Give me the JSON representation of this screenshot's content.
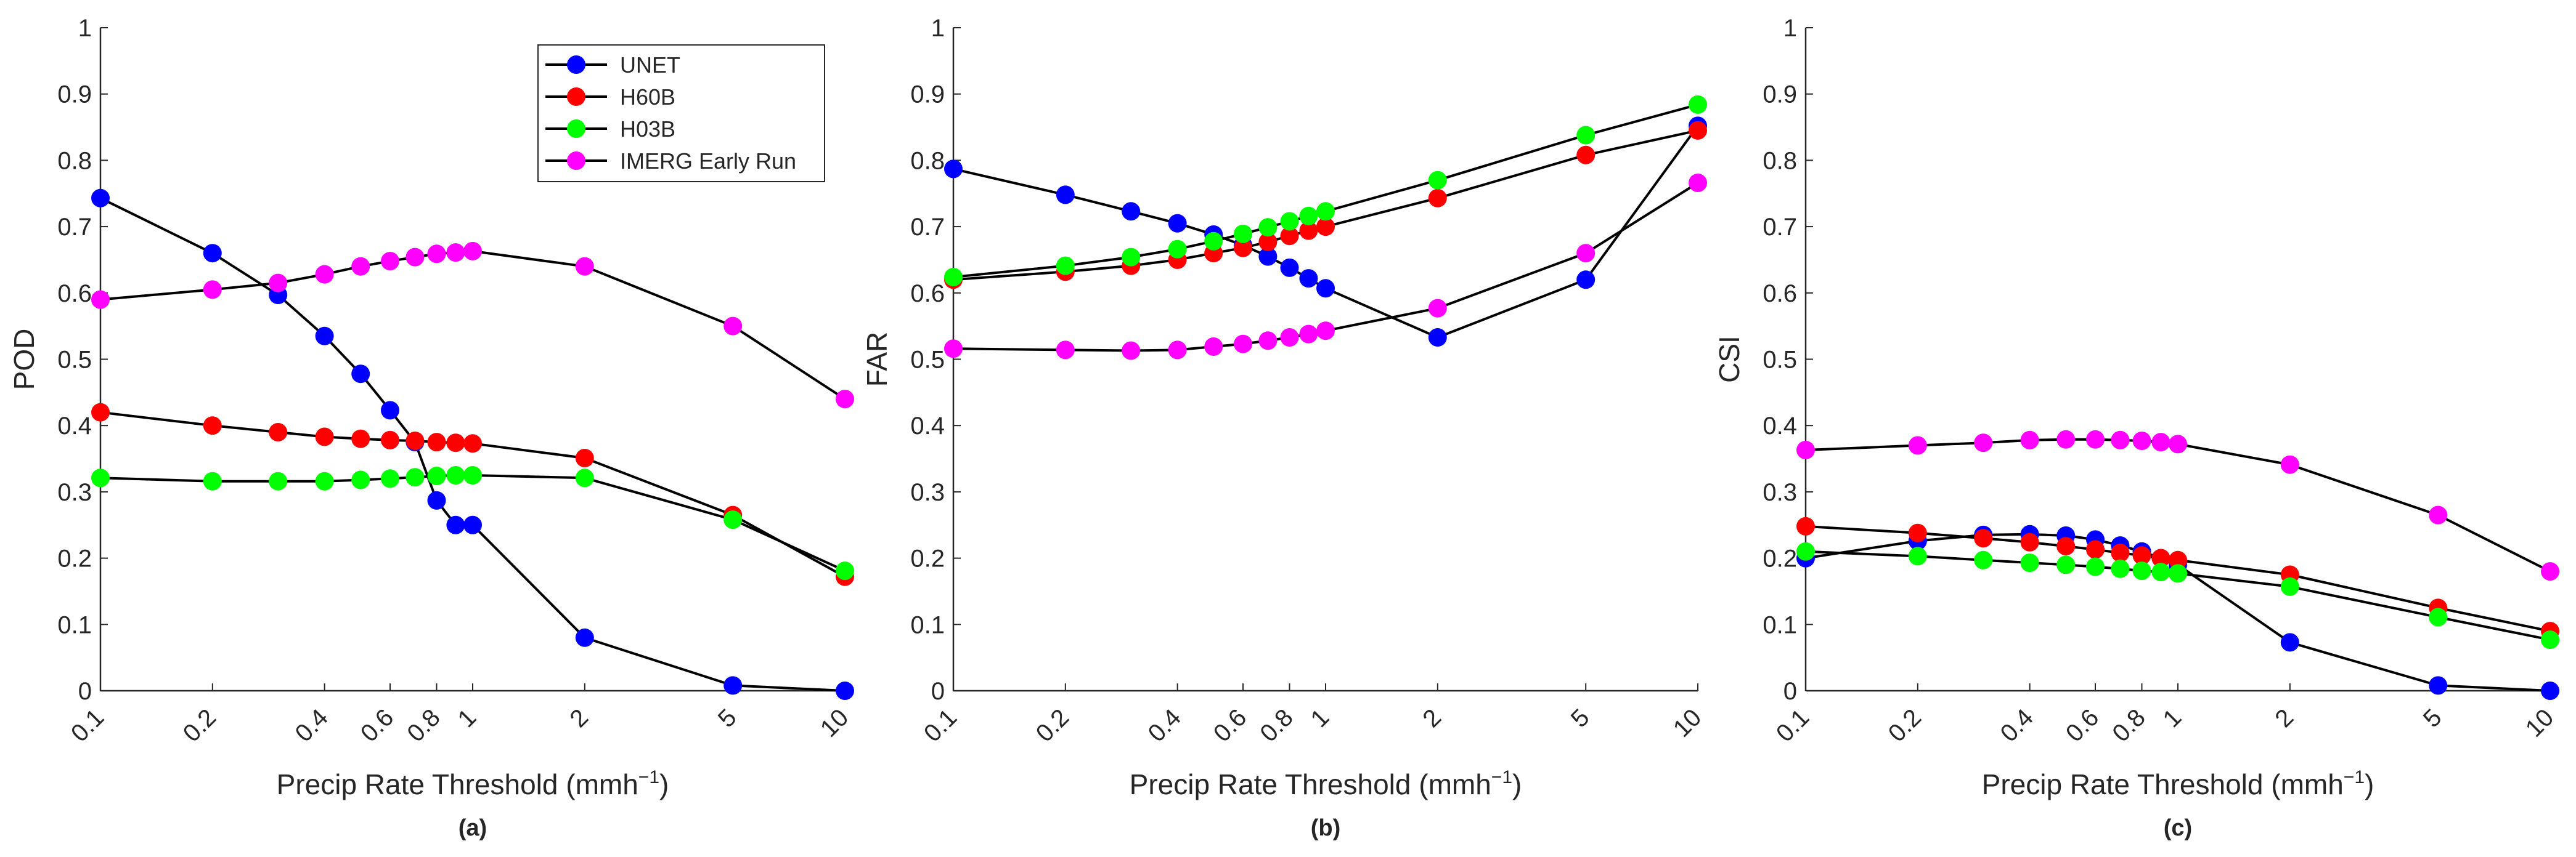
{
  "figure": {
    "legend": {
      "entries": [
        {
          "name": "UNET",
          "color": "#0000ff"
        },
        {
          "name": "H60B",
          "color": "#ff0000"
        },
        {
          "name": "H03B",
          "color": "#00ff00"
        },
        {
          "name": "IMERG Early Run",
          "color": "#ff00ff"
        }
      ]
    }
  },
  "chart_data": [
    {
      "type": "line",
      "panel_label": "(a)",
      "xlabel": "Precip Rate Threshold (mmh",
      "xlabel_sup": "−1",
      "xlabel_close": ")",
      "ylabel": "POD",
      "xscale": "log",
      "xlim": [
        0.1,
        10
      ],
      "ylim": [
        0,
        1
      ],
      "xticks": [
        0.1,
        0.2,
        0.4,
        0.6,
        0.8,
        1,
        2,
        5,
        10
      ],
      "xtick_labels": [
        "0.1",
        "0.2",
        "0.4",
        "0.6",
        "0.8",
        "1",
        "2",
        "5",
        "10"
      ],
      "yticks": [
        0,
        0.1,
        0.2,
        0.3,
        0.4,
        0.5,
        0.6,
        0.7,
        0.8,
        0.9,
        1
      ],
      "ytick_labels": [
        "0",
        "0.1",
        "0.2",
        "0.3",
        "0.4",
        "0.5",
        "0.6",
        "0.7",
        "0.8",
        "0.9",
        "1"
      ],
      "legend": true,
      "legend_position": "top-right",
      "x": [
        0.1,
        0.2,
        0.3,
        0.4,
        0.5,
        0.6,
        0.7,
        0.8,
        0.9,
        1,
        2,
        5,
        10
      ],
      "series": [
        {
          "name": "UNET",
          "color": "#0000ff",
          "values": [
            0.743,
            0.66,
            0.597,
            0.535,
            0.478,
            0.423,
            0.375,
            0.287,
            0.25,
            0.25,
            0.08,
            0.008,
            0.0
          ]
        },
        {
          "name": "H60B",
          "color": "#ff0000",
          "values": [
            0.42,
            0.4,
            0.39,
            0.383,
            0.38,
            0.378,
            0.377,
            0.375,
            0.374,
            0.373,
            0.351,
            0.265,
            0.172
          ]
        },
        {
          "name": "H03B",
          "color": "#00ff00",
          "values": [
            0.321,
            0.316,
            0.316,
            0.316,
            0.318,
            0.32,
            0.322,
            0.324,
            0.325,
            0.325,
            0.321,
            0.258,
            0.181
          ]
        },
        {
          "name": "IMERG Early Run",
          "color": "#ff00ff",
          "values": [
            0.59,
            0.605,
            0.615,
            0.628,
            0.64,
            0.648,
            0.654,
            0.659,
            0.661,
            0.663,
            0.64,
            0.55,
            0.44
          ]
        }
      ]
    },
    {
      "type": "line",
      "panel_label": "(b)",
      "xlabel": "Precip Rate Threshold (mmh",
      "xlabel_sup": "−1",
      "xlabel_close": ")",
      "ylabel": "FAR",
      "xscale": "log",
      "xlim": [
        0.1,
        10
      ],
      "ylim": [
        0,
        1
      ],
      "xticks": [
        0.1,
        0.2,
        0.4,
        0.6,
        0.8,
        1,
        2,
        5,
        10
      ],
      "xtick_labels": [
        "0.1",
        "0.2",
        "0.4",
        "0.6",
        "0.8",
        "1",
        "2",
        "5",
        "10"
      ],
      "yticks": [
        0,
        0.1,
        0.2,
        0.3,
        0.4,
        0.5,
        0.6,
        0.7,
        0.8,
        0.9,
        1
      ],
      "ytick_labels": [
        "0",
        "0.1",
        "0.2",
        "0.3",
        "0.4",
        "0.5",
        "0.6",
        "0.7",
        "0.8",
        "0.9",
        "1"
      ],
      "legend": false,
      "x": [
        0.1,
        0.2,
        0.3,
        0.4,
        0.5,
        0.6,
        0.7,
        0.8,
        0.9,
        1,
        2,
        5,
        10
      ],
      "series": [
        {
          "name": "UNET",
          "color": "#0000ff",
          "values": [
            0.787,
            0.748,
            0.723,
            0.705,
            0.688,
            0.672,
            0.655,
            0.638,
            0.622,
            0.607,
            0.533,
            0.62,
            0.852
          ]
        },
        {
          "name": "H60B",
          "color": "#ff0000",
          "values": [
            0.62,
            0.632,
            0.641,
            0.65,
            0.66,
            0.668,
            0.677,
            0.686,
            0.694,
            0.7,
            0.743,
            0.808,
            0.845
          ]
        },
        {
          "name": "H03B",
          "color": "#00ff00",
          "values": [
            0.624,
            0.641,
            0.654,
            0.666,
            0.678,
            0.689,
            0.699,
            0.708,
            0.716,
            0.723,
            0.77,
            0.838,
            0.884
          ]
        },
        {
          "name": "IMERG Early Run",
          "color": "#ff00ff",
          "values": [
            0.516,
            0.514,
            0.513,
            0.514,
            0.519,
            0.523,
            0.528,
            0.533,
            0.538,
            0.543,
            0.577,
            0.66,
            0.766
          ]
        }
      ]
    },
    {
      "type": "line",
      "panel_label": "(c)",
      "xlabel": "Precip Rate Threshold (mmh",
      "xlabel_sup": "−1",
      "xlabel_close": ")",
      "ylabel": "CSI",
      "xscale": "log",
      "xlim": [
        0.1,
        10
      ],
      "ylim": [
        0,
        1
      ],
      "xticks": [
        0.1,
        0.2,
        0.4,
        0.6,
        0.8,
        1,
        2,
        5,
        10
      ],
      "xtick_labels": [
        "0.1",
        "0.2",
        "0.4",
        "0.6",
        "0.8",
        "1",
        "2",
        "5",
        "10"
      ],
      "yticks": [
        0,
        0.1,
        0.2,
        0.3,
        0.4,
        0.5,
        0.6,
        0.7,
        0.8,
        0.9,
        1
      ],
      "ytick_labels": [
        "0",
        "0.1",
        "0.2",
        "0.3",
        "0.4",
        "0.5",
        "0.6",
        "0.7",
        "0.8",
        "0.9",
        "1"
      ],
      "legend": false,
      "x": [
        0.1,
        0.2,
        0.3,
        0.4,
        0.5,
        0.6,
        0.7,
        0.8,
        0.9,
        1,
        2,
        5,
        10
      ],
      "series": [
        {
          "name": "UNET",
          "color": "#0000ff",
          "values": [
            0.2,
            0.226,
            0.235,
            0.236,
            0.234,
            0.228,
            0.219,
            0.21,
            0.2,
            0.19,
            0.073,
            0.008,
            0.0
          ]
        },
        {
          "name": "H60B",
          "color": "#ff0000",
          "values": [
            0.248,
            0.238,
            0.23,
            0.224,
            0.218,
            0.213,
            0.208,
            0.204,
            0.2,
            0.197,
            0.175,
            0.125,
            0.09
          ]
        },
        {
          "name": "H03B",
          "color": "#00ff00",
          "values": [
            0.21,
            0.203,
            0.197,
            0.193,
            0.19,
            0.187,
            0.184,
            0.181,
            0.179,
            0.177,
            0.157,
            0.111,
            0.077
          ]
        },
        {
          "name": "IMERG Early Run",
          "color": "#ff00ff",
          "values": [
            0.363,
            0.37,
            0.374,
            0.378,
            0.379,
            0.379,
            0.378,
            0.377,
            0.375,
            0.372,
            0.341,
            0.265,
            0.18
          ]
        }
      ]
    }
  ]
}
